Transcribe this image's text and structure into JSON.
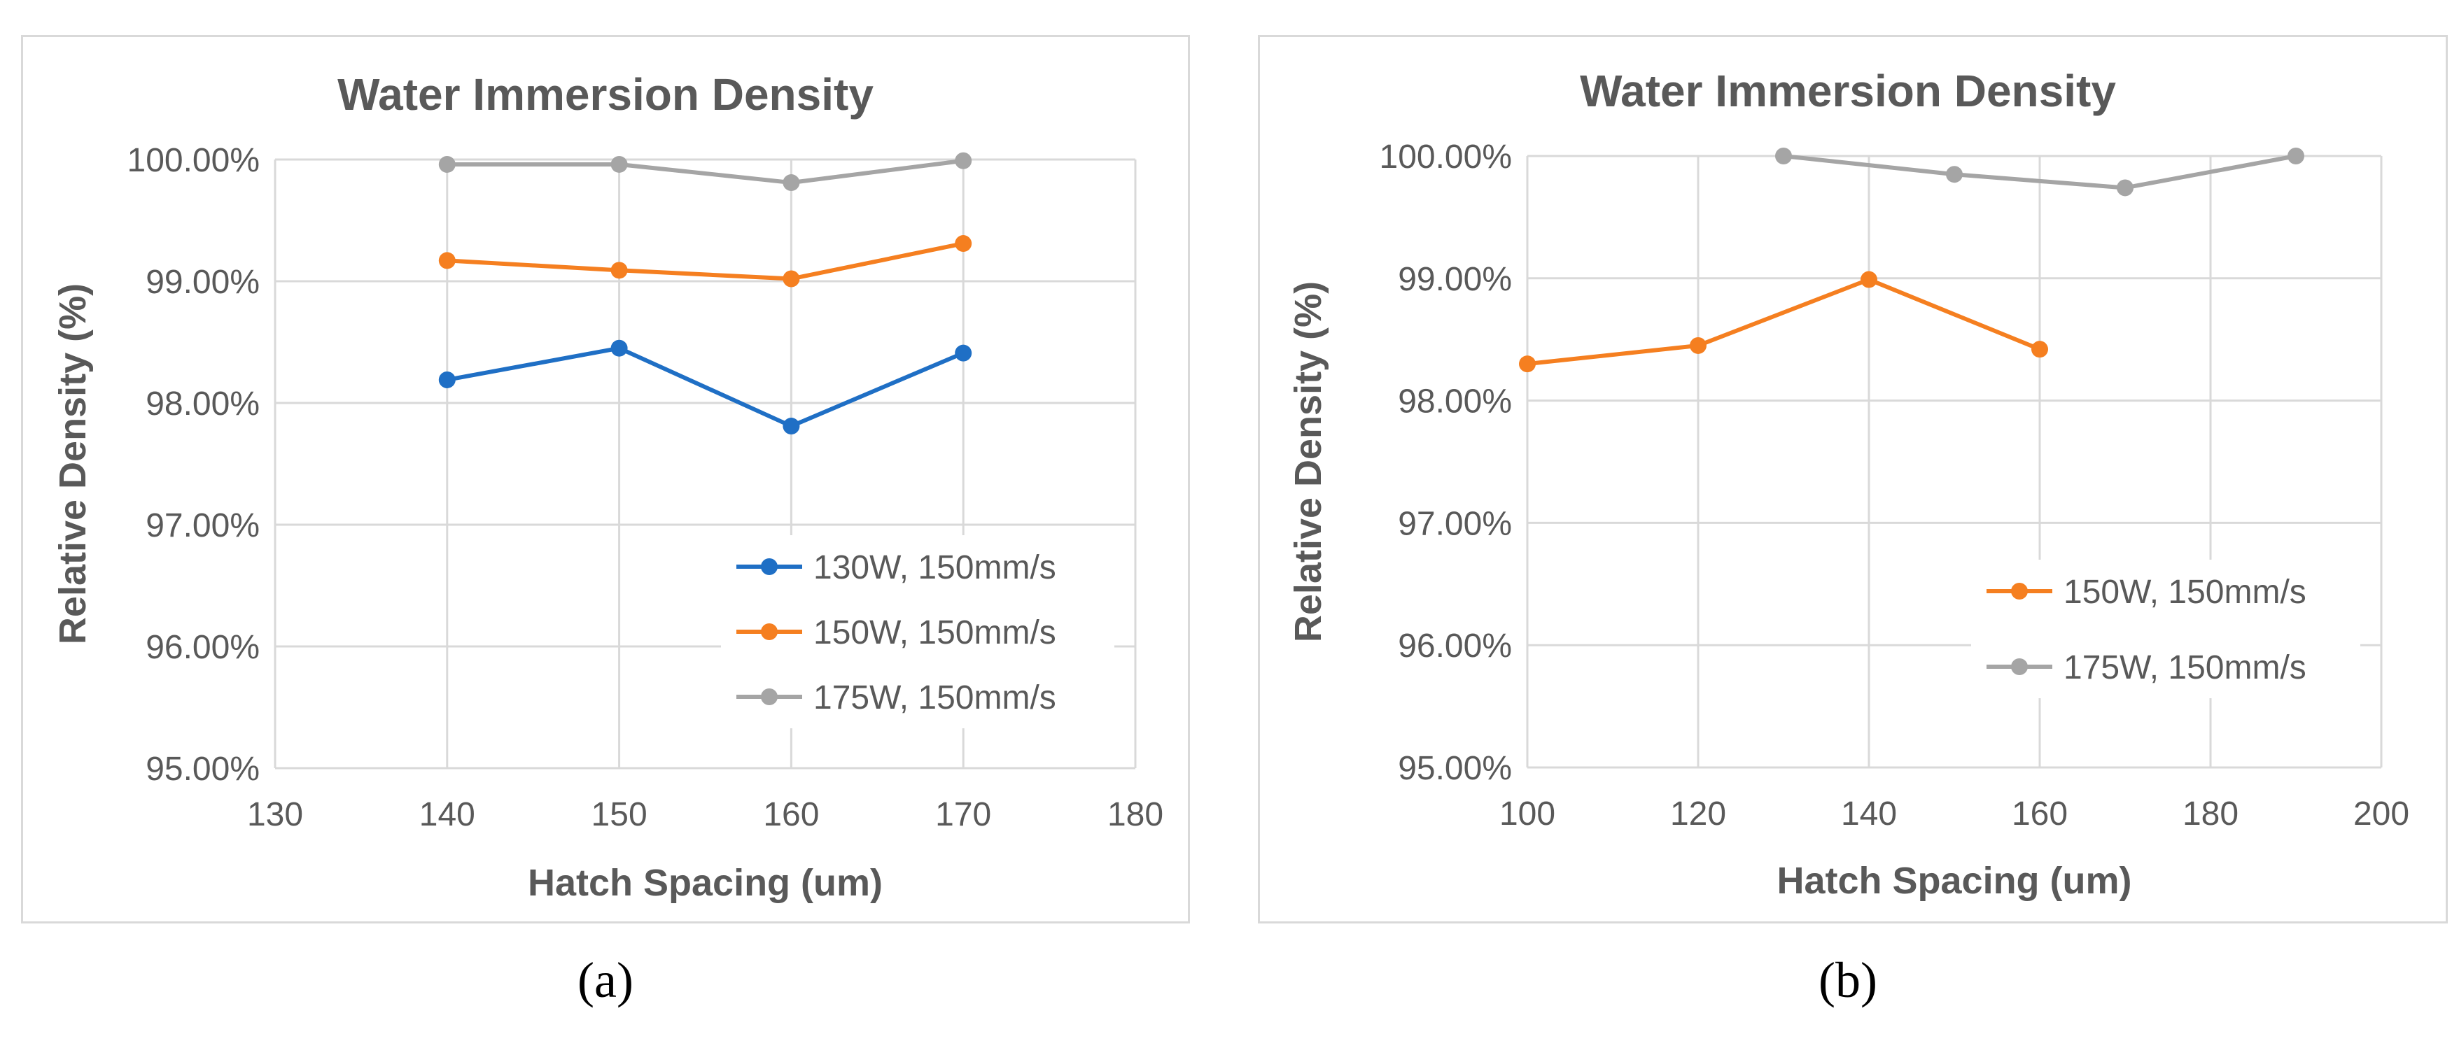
{
  "colors": {
    "130W": "#1f6fc5",
    "150W": "#f57f20",
    "175W": "#a5a5a5",
    "grid": "#d9d9d9",
    "text": "#595959"
  },
  "chart_data": [
    {
      "panel_label": "(a)",
      "type": "line",
      "title": "Water Immersion Density",
      "xlabel": "Hatch Spacing (um)",
      "ylabel": "Relative Density (%)",
      "xlim": [
        130,
        180
      ],
      "ylim": [
        95,
        100
      ],
      "xticks": [
        130,
        140,
        150,
        160,
        170,
        180
      ],
      "yticks": [
        95,
        96,
        97,
        98,
        99,
        100
      ],
      "ytick_labels": [
        "95.00%",
        "96.00%",
        "97.00%",
        "98.00%",
        "99.00%",
        "100.00%"
      ],
      "grid": true,
      "legend_position": "bottom-right",
      "series": [
        {
          "name": "130W, 150mm/s",
          "color": "#1f6fc5",
          "x": [
            140,
            150,
            160,
            170
          ],
          "y": [
            98.19,
            98.45,
            97.81,
            98.41
          ]
        },
        {
          "name": "150W, 150mm/s",
          "color": "#f57f20",
          "x": [
            140,
            150,
            160,
            170
          ],
          "y": [
            99.17,
            99.09,
            99.02,
            99.31
          ]
        },
        {
          "name": "175W, 150mm/s",
          "color": "#a5a5a5",
          "x": [
            140,
            150,
            160,
            170
          ],
          "y": [
            99.96,
            99.96,
            99.81,
            99.99
          ]
        }
      ]
    },
    {
      "panel_label": "(b)",
      "type": "line",
      "title": "Water Immersion Density",
      "xlabel": "Hatch Spacing (um)",
      "ylabel": "Relative Density (%)",
      "xlim": [
        100,
        200
      ],
      "ylim": [
        95,
        100
      ],
      "xticks": [
        100,
        120,
        140,
        160,
        180,
        200
      ],
      "yticks": [
        95,
        96,
        97,
        98,
        99,
        100
      ],
      "ytick_labels": [
        "95.00%",
        "96.00%",
        "97.00%",
        "98.00%",
        "99.00%",
        "100.00%"
      ],
      "grid": true,
      "legend_position": "bottom-right",
      "series": [
        {
          "name": "150W, 150mm/s",
          "color": "#f57f20",
          "x": [
            100,
            120,
            140,
            160
          ],
          "y": [
            98.3,
            98.45,
            98.99,
            98.42
          ]
        },
        {
          "name": "175W, 150mm/s",
          "color": "#a5a5a5",
          "x": [
            130,
            150,
            170,
            190
          ],
          "y": [
            100.0,
            99.85,
            99.74,
            100.0
          ]
        }
      ]
    }
  ]
}
